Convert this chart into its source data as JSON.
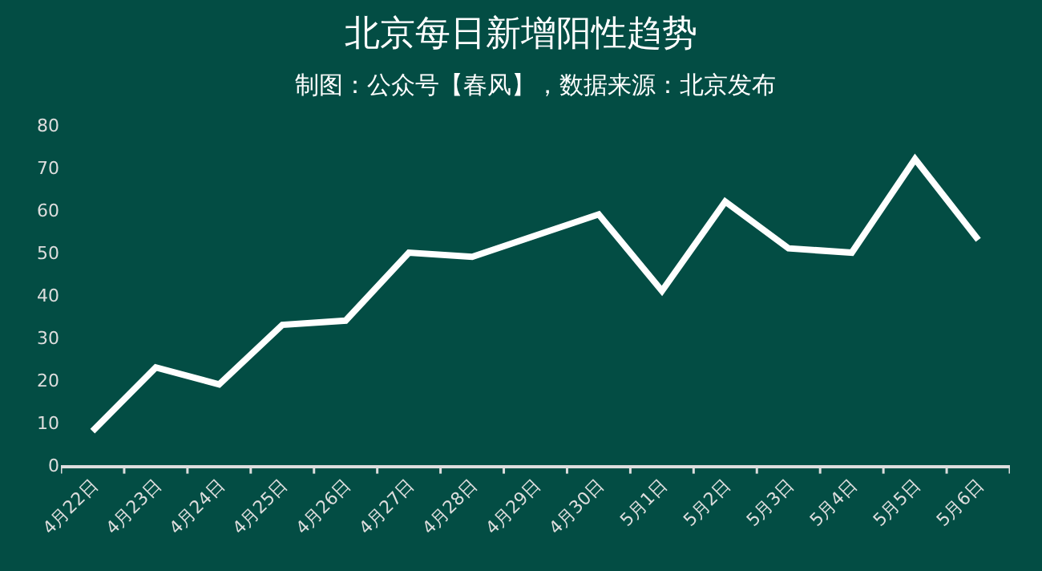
{
  "chart_data": {
    "type": "line",
    "title": "北京每日新增阳性趋势",
    "subtitle": "制图：公众号【春风】，数据来源：北京发布",
    "categories": [
      "4月22日",
      "4月23日",
      "4月24日",
      "4月25日",
      "4月26日",
      "4月27日",
      "4月28日",
      "4月29日",
      "4月30日",
      "5月1日",
      "5月2日",
      "5月3日",
      "5月4日",
      "5月5日",
      "5月6日"
    ],
    "series": [
      {
        "color": "#ffffff",
        "values": [
          8,
          23,
          19,
          33,
          34,
          50,
          49,
          54,
          59,
          41,
          62,
          51,
          50,
          72,
          53
        ]
      }
    ],
    "ylim": [
      0,
      80
    ],
    "yticks": [
      0,
      10,
      20,
      30,
      40,
      50,
      60,
      70,
      80
    ],
    "grid": false,
    "marker": "none",
    "line_style": "solid"
  }
}
